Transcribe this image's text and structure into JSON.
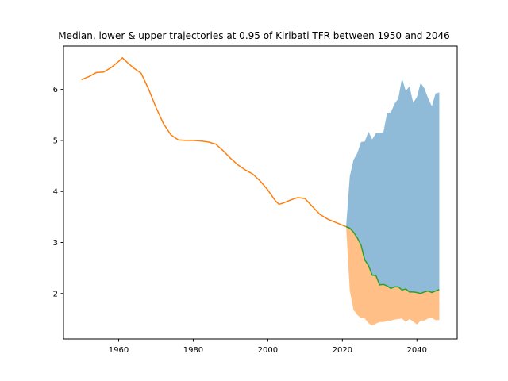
{
  "chart_data": {
    "type": "line",
    "title": "Median, lower & upper trajectories at 0.95 of Kiribati TFR between 1950 and 2046",
    "xlabel": "",
    "ylabel": "",
    "xlim": [
      1945.2,
      2050.8
    ],
    "ylim": [
      1.11,
      6.85
    ],
    "xticks": [
      1960,
      1980,
      2000,
      2020,
      2040
    ],
    "yticks": [
      2,
      3,
      4,
      5,
      6
    ],
    "grid": false,
    "legend": "none",
    "series": [
      {
        "role": "historical",
        "color": "#ff7f0e",
        "x": [
          1950,
          1952,
          1954,
          1956,
          1958,
          1960,
          1961,
          1962,
          1964,
          1966,
          1968,
          1970,
          1972,
          1974,
          1976,
          1978,
          1980,
          1982,
          1984,
          1986,
          1988,
          1990,
          1992,
          1994,
          1996,
          1998,
          2000,
          2002,
          2003,
          2004,
          2006,
          2008,
          2010,
          2012,
          2014,
          2016,
          2018,
          2020,
          2021
        ],
        "y": [
          6.19,
          6.25,
          6.33,
          6.34,
          6.43,
          6.55,
          6.62,
          6.55,
          6.42,
          6.32,
          6.01,
          5.65,
          5.33,
          5.11,
          5.01,
          5.0,
          5.0,
          4.99,
          4.97,
          4.93,
          4.8,
          4.65,
          4.52,
          4.42,
          4.34,
          4.2,
          4.03,
          3.82,
          3.75,
          3.77,
          3.83,
          3.88,
          3.86,
          3.7,
          3.55,
          3.46,
          3.4,
          3.34,
          3.31
        ]
      },
      {
        "role": "median",
        "color": "#2ca02c",
        "x": [
          2021,
          2022,
          2023,
          2024,
          2025,
          2026,
          2027,
          2028,
          2029,
          2030,
          2031,
          2032,
          2033,
          2034,
          2035,
          2036,
          2037,
          2038,
          2039,
          2040,
          2041,
          2042,
          2043,
          2044,
          2045,
          2046
        ],
        "y": [
          3.31,
          3.28,
          3.2,
          3.09,
          2.95,
          2.66,
          2.55,
          2.36,
          2.35,
          2.17,
          2.18,
          2.15,
          2.1,
          2.13,
          2.13,
          2.07,
          2.09,
          2.03,
          2.03,
          2.02,
          2.0,
          2.03,
          2.05,
          2.02,
          2.05,
          2.08
        ]
      }
    ],
    "bands": [
      {
        "role": "upper_0.95",
        "color": "#1f77b4",
        "opacity": 0.5,
        "x": [
          2021,
          2022,
          2023,
          2024,
          2025,
          2026,
          2027,
          2028,
          2029,
          2030,
          2031,
          2032,
          2033,
          2034,
          2035,
          2036,
          2037,
          2038,
          2039,
          2040,
          2041,
          2042,
          2043,
          2044,
          2045,
          2046
        ],
        "y": [
          3.31,
          4.3,
          4.62,
          4.75,
          4.97,
          4.98,
          5.17,
          5.02,
          5.14,
          5.15,
          5.16,
          5.54,
          5.55,
          5.72,
          5.82,
          6.22,
          5.97,
          6.06,
          5.74,
          5.85,
          6.13,
          6.02,
          5.83,
          5.67,
          5.92,
          5.94
        ]
      },
      {
        "role": "lower_0.95",
        "color": "#ff7f0e",
        "opacity": 0.5,
        "x": [
          2021,
          2022,
          2023,
          2024,
          2025,
          2026,
          2027,
          2028,
          2029,
          2030,
          2031,
          2032,
          2033,
          2034,
          2035,
          2036,
          2037,
          2038,
          2039,
          2040,
          2041,
          2042,
          2043,
          2044,
          2045,
          2046
        ],
        "y": [
          3.31,
          2.05,
          1.68,
          1.58,
          1.52,
          1.51,
          1.42,
          1.37,
          1.41,
          1.44,
          1.44,
          1.46,
          1.47,
          1.49,
          1.5,
          1.51,
          1.44,
          1.5,
          1.45,
          1.39,
          1.47,
          1.47,
          1.51,
          1.52,
          1.48,
          1.48
        ]
      }
    ]
  }
}
